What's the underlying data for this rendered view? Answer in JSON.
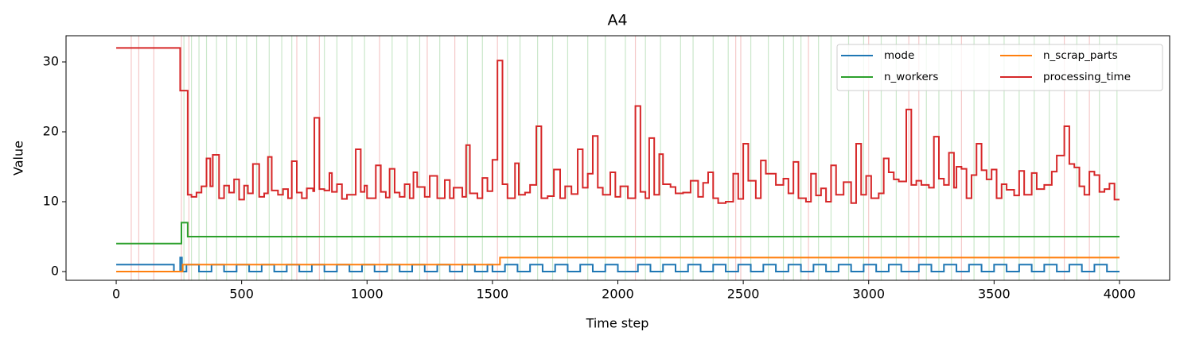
{
  "chart_data": {
    "type": "step",
    "title": "A4",
    "x_label": "Time step",
    "y_label": "Value",
    "xlim": [
      -200,
      4200
    ],
    "ylim": [
      -1.25,
      33.75
    ],
    "xticks": [
      0,
      500,
      1000,
      1500,
      2000,
      2500,
      3000,
      3500,
      4000
    ],
    "yticks": [
      0,
      10,
      20,
      30
    ],
    "legend": "upper right",
    "legend_columns": 2,
    "vlines": [
      {
        "color": "#d62728",
        "x": [
          60,
          90,
          150,
          260,
          290,
          720,
          810,
          1050,
          1240,
          1350,
          1520,
          2070,
          2470,
          2490,
          2760,
          3000,
          3160,
          3200,
          3370,
          3780,
          3880
        ]
      },
      {
        "color": "#2ca02c",
        "x": [
          270,
          300,
          330,
          360,
          400,
          440,
          480,
          520,
          560,
          610,
          660,
          700,
          760,
          830,
          880,
          940,
          990,
          1100,
          1160,
          1210,
          1290,
          1400,
          1460,
          1560,
          1610,
          1680,
          1740,
          1800,
          1880,
          1950,
          2030,
          2110,
          2170,
          2250,
          2300,
          2380,
          2440,
          2530,
          2600,
          2660,
          2700,
          2730,
          2800,
          2850,
          2920,
          2980,
          3050,
          3110,
          3230,
          3280,
          3330,
          3420,
          3480,
          3540,
          3600,
          3660,
          3720,
          3830,
          3920,
          3990
        ]
      }
    ],
    "series": [
      {
        "name": "mode",
        "color": "#1f77b4",
        "x": [
          0,
          230,
          255,
          262,
          280,
          330,
          380,
          430,
          480,
          530,
          580,
          630,
          680,
          730,
          780,
          830,
          880,
          930,
          980,
          1030,
          1080,
          1130,
          1180,
          1230,
          1280,
          1330,
          1380,
          1430,
          1480,
          1500,
          1550,
          1600,
          1650,
          1700,
          1750,
          1800,
          1850,
          1900,
          1950,
          2000,
          2050,
          2080,
          2130,
          2180,
          2230,
          2280,
          2330,
          2380,
          2430,
          2480,
          2530,
          2580,
          2630,
          2680,
          2730,
          2780,
          2830,
          2880,
          2930,
          2980,
          3030,
          3080,
          3130,
          3160,
          3200,
          3250,
          3300,
          3350,
          3400,
          3450,
          3500,
          3550,
          3600,
          3650,
          3700,
          3750,
          3800,
          3850,
          3900,
          3950,
          4000
        ],
        "values": [
          1,
          0,
          2,
          0,
          1,
          0,
          1,
          0,
          1,
          0,
          1,
          0,
          1,
          0,
          1,
          0,
          1,
          0,
          1,
          0,
          1,
          0,
          1,
          0,
          1,
          0,
          1,
          0,
          1,
          0,
          1,
          0,
          1,
          0,
          1,
          0,
          1,
          0,
          1,
          0,
          0,
          1,
          0,
          1,
          0,
          1,
          0,
          1,
          0,
          1,
          0,
          1,
          0,
          1,
          0,
          1,
          0,
          1,
          0,
          1,
          0,
          1,
          0,
          0,
          1,
          0,
          1,
          0,
          1,
          0,
          1,
          0,
          1,
          0,
          1,
          0,
          1,
          0,
          1,
          0,
          0
        ]
      },
      {
        "name": "n_scrap_parts",
        "color": "#ff7f0e",
        "x": [
          0,
          265,
          1530,
          4000
        ],
        "values": [
          0,
          1,
          2,
          2
        ]
      },
      {
        "name": "n_workers",
        "color": "#2ca02c",
        "x": [
          0,
          260,
          285,
          4000
        ],
        "values": [
          4,
          7,
          5,
          5
        ]
      },
      {
        "name": "processing_time",
        "color": "#d62728",
        "x": [
          0,
          255,
          285,
          300,
          320,
          340,
          360,
          375,
          385,
          410,
          430,
          450,
          470,
          490,
          510,
          525,
          545,
          570,
          590,
          605,
          620,
          645,
          665,
          685,
          700,
          720,
          740,
          760,
          785,
          790,
          810,
          830,
          850,
          860,
          880,
          900,
          920,
          955,
          975,
          990,
          1000,
          1035,
          1055,
          1075,
          1090,
          1110,
          1130,
          1150,
          1170,
          1185,
          1200,
          1230,
          1250,
          1280,
          1310,
          1330,
          1345,
          1380,
          1395,
          1410,
          1440,
          1460,
          1480,
          1500,
          1520,
          1540,
          1560,
          1590,
          1605,
          1630,
          1650,
          1675,
          1695,
          1720,
          1745,
          1770,
          1790,
          1815,
          1840,
          1860,
          1880,
          1900,
          1920,
          1940,
          1970,
          1990,
          2010,
          2040,
          2070,
          2090,
          2110,
          2125,
          2145,
          2165,
          2180,
          2210,
          2230,
          2260,
          2290,
          2320,
          2340,
          2360,
          2380,
          2400,
          2430,
          2460,
          2480,
          2500,
          2520,
          2550,
          2570,
          2590,
          2630,
          2660,
          2680,
          2700,
          2720,
          2750,
          2770,
          2790,
          2810,
          2830,
          2850,
          2870,
          2900,
          2930,
          2950,
          2970,
          2990,
          3010,
          3040,
          3060,
          3080,
          3100,
          3120,
          3150,
          3170,
          3190,
          3210,
          3240,
          3260,
          3280,
          3300,
          3320,
          3340,
          3350,
          3370,
          3390,
          3410,
          3430,
          3450,
          3470,
          3490,
          3510,
          3530,
          3550,
          3580,
          3600,
          3620,
          3650,
          3670,
          3700,
          3730,
          3750,
          3780,
          3800,
          3820,
          3840,
          3860,
          3880,
          3900,
          3920,
          3940,
          3960,
          3980,
          4000
        ],
        "values": [
          32,
          25.9,
          11,
          10.7,
          11.3,
          12.2,
          16.2,
          12.2,
          16.7,
          10.5,
          12.3,
          11.3,
          13.2,
          10.3,
          12.3,
          11.2,
          15.4,
          10.7,
          11.2,
          16.4,
          11.6,
          11.0,
          11.8,
          10.5,
          15.8,
          11.3,
          10.5,
          11.9,
          11.5,
          22,
          11.8,
          11.6,
          14.1,
          11.4,
          12.5,
          10.4,
          11.0,
          17.5,
          11.4,
          12.3,
          10.5,
          15.2,
          11.4,
          10.6,
          14.7,
          11.3,
          10.7,
          12.5,
          10.5,
          14.2,
          12.1,
          10.7,
          13.7,
          10.5,
          13.1,
          10.5,
          12.0,
          10.7,
          18.1,
          11.2,
          10.5,
          13.4,
          11.5,
          16.0,
          30.2,
          12.5,
          10.5,
          15.5,
          11.0,
          11.3,
          12.4,
          20.8,
          10.5,
          10.8,
          14.6,
          10.5,
          12.2,
          11.1,
          17.5,
          12.0,
          14.0,
          19.4,
          12.0,
          11.0,
          14.2,
          10.7,
          12.2,
          10.5,
          23.7,
          11.4,
          10.5,
          19.1,
          11.0,
          16.8,
          12.5,
          12.1,
          11.2,
          11.3,
          13.0,
          10.7,
          12.7,
          14.2,
          10.5,
          9.8,
          10.0,
          14.0,
          10.4,
          18.3,
          13.0,
          10.5,
          15.9,
          14.0,
          12.4,
          13.3,
          11.2,
          15.7,
          10.5,
          10.0,
          14.0,
          10.9,
          11.9,
          10.0,
          15.2,
          11.0,
          12.8,
          9.8,
          18.3,
          11.0,
          13.7,
          10.5,
          11.2,
          16.2,
          14.2,
          13.2,
          12.9,
          23.2,
          12.4,
          13.0,
          12.4,
          12.0,
          19.3,
          13.3,
          12.4,
          17.0,
          12.0,
          15.0,
          14.7,
          10.5,
          13.8,
          18.3,
          14.5,
          13.2,
          14.6,
          10.5,
          12.5,
          11.7,
          10.9,
          14.4,
          11.0,
          14.1,
          11.8,
          12.4,
          14.3,
          16.6,
          20.8,
          15.4,
          14.9,
          12.2,
          11.0,
          14.3,
          13.8,
          11.4,
          11.8,
          12.6,
          10.3,
          10.3
        ]
      }
    ]
  }
}
